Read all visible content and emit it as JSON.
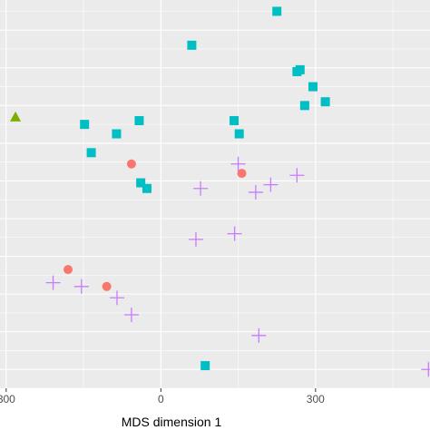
{
  "chart_data": {
    "type": "scatter",
    "xlabel": "MDS dimension 1",
    "ylabel": "",
    "xlim": [
      -312,
      522
    ],
    "ylim": [
      -5,
      98
    ],
    "x_ticks": [
      {
        "value": -300,
        "label": "300"
      },
      {
        "value": 0,
        "label": "0"
      },
      {
        "value": 300,
        "label": "300"
      }
    ],
    "grid": true,
    "legend": "none",
    "series": [
      {
        "marker": "square",
        "color": "#00BFC4",
        "points": [
          {
            "x": 225,
            "y": 95
          },
          {
            "x": 60,
            "y": 86
          },
          {
            "x": 264,
            "y": 79
          },
          {
            "x": 270,
            "y": 79.5
          },
          {
            "x": 295,
            "y": 75
          },
          {
            "x": 319,
            "y": 71
          },
          {
            "x": 279,
            "y": 70
          },
          {
            "x": -148,
            "y": 65
          },
          {
            "x": -42,
            "y": 66
          },
          {
            "x": 142,
            "y": 66
          },
          {
            "x": 152,
            "y": 62.5
          },
          {
            "x": -86,
            "y": 62.5
          },
          {
            "x": -135,
            "y": 57.5
          },
          {
            "x": -39,
            "y": 49.5
          },
          {
            "x": -27,
            "y": 48
          },
          {
            "x": 86,
            "y": 1
          }
        ]
      },
      {
        "marker": "circle",
        "color": "#F8766D",
        "points": [
          {
            "x": -57,
            "y": 54.5
          },
          {
            "x": 157,
            "y": 52
          },
          {
            "x": -180,
            "y": 26.5
          },
          {
            "x": -105,
            "y": 22
          }
        ]
      },
      {
        "marker": "cross",
        "color": "#C77CFF",
        "points": [
          {
            "x": 150,
            "y": 54.5
          },
          {
            "x": 264,
            "y": 51.5
          },
          {
            "x": 213,
            "y": 49
          },
          {
            "x": 77,
            "y": 48
          },
          {
            "x": 184,
            "y": 47
          },
          {
            "x": 143,
            "y": 36
          },
          {
            "x": 68,
            "y": 34.5
          },
          {
            "x": -209,
            "y": 23
          },
          {
            "x": -154,
            "y": 22
          },
          {
            "x": -85,
            "y": 19
          },
          {
            "x": -57,
            "y": 14.5
          },
          {
            "x": 190,
            "y": 9
          },
          {
            "x": 519,
            "y": 0
          }
        ]
      },
      {
        "marker": "triangle",
        "color": "#7CAE00",
        "points": [
          {
            "x": -282,
            "y": 67
          }
        ]
      }
    ]
  }
}
